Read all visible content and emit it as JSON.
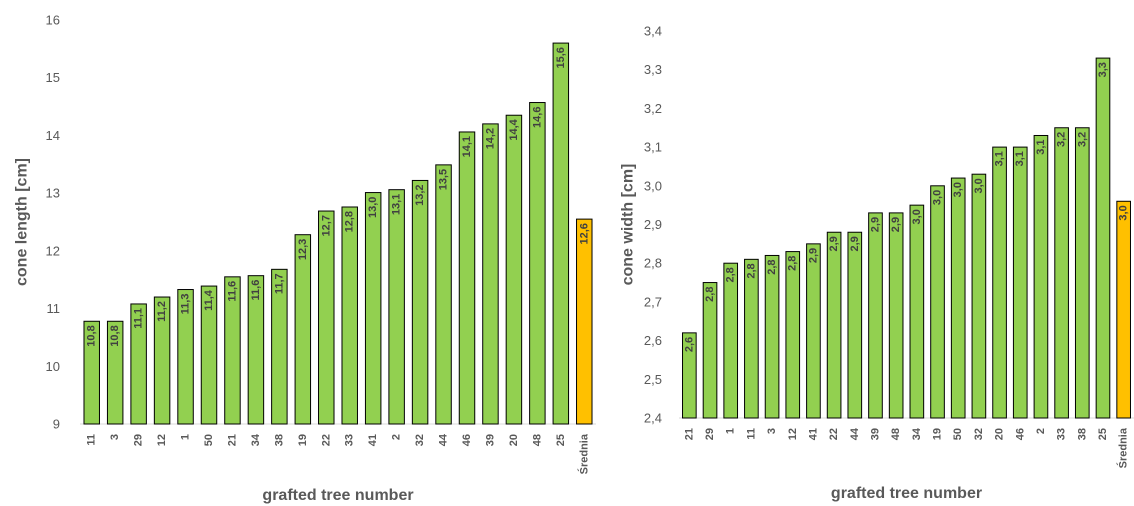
{
  "chart_data": [
    {
      "type": "bar",
      "xlabel": "grafted tree number",
      "ylabel": "cone length [cm]",
      "ylim": [
        9,
        16
      ],
      "yticks": [
        "9",
        "10",
        "11",
        "12",
        "13",
        "14",
        "15",
        "16"
      ],
      "categories": [
        "11",
        "3",
        "29",
        "12",
        "1",
        "50",
        "21",
        "34",
        "38",
        "19",
        "22",
        "33",
        "41",
        "2",
        "32",
        "44",
        "46",
        "39",
        "20",
        "48",
        "25",
        "Średnia"
      ],
      "values": [
        10.78,
        10.78,
        11.08,
        11.2,
        11.33,
        11.39,
        11.55,
        11.57,
        11.68,
        12.28,
        12.69,
        12.76,
        13.01,
        13.06,
        13.22,
        13.49,
        14.06,
        14.2,
        14.35,
        14.57,
        15.6,
        12.55
      ],
      "data_labels": [
        "10,8",
        "10,8",
        "11,1",
        "11,2",
        "11,3",
        "11,4",
        "11,6",
        "11,6",
        "11,7",
        "12,3",
        "12,7",
        "12,8",
        "13,0",
        "13,1",
        "13,2",
        "13,5",
        "14,1",
        "14,2",
        "14,4",
        "14,6",
        "15,6",
        "12,6"
      ],
      "bar_color": "#92d050",
      "highlight_color": "#ffc000",
      "highlight_index": 21,
      "grid": false,
      "legend": "none"
    },
    {
      "type": "bar",
      "xlabel": "grafted tree number",
      "ylabel": "cone width [cm]",
      "ylim": [
        2.4,
        3.4
      ],
      "yticks": [
        "2,4",
        "2,5",
        "2,6",
        "2,7",
        "2,8",
        "2,9",
        "3,0",
        "3,1",
        "3,2",
        "3,3",
        "3,4"
      ],
      "categories": [
        "21",
        "29",
        "1",
        "11",
        "3",
        "12",
        "41",
        "22",
        "44",
        "39",
        "48",
        "34",
        "19",
        "50",
        "32",
        "20",
        "46",
        "2",
        "33",
        "38",
        "25",
        "Średnia"
      ],
      "values": [
        2.62,
        2.75,
        2.8,
        2.81,
        2.82,
        2.83,
        2.85,
        2.88,
        2.88,
        2.93,
        2.93,
        2.95,
        3.0,
        3.02,
        3.03,
        3.1,
        3.1,
        3.13,
        3.15,
        3.15,
        3.33,
        2.96
      ],
      "data_labels": [
        "2,6",
        "2,8",
        "2,8",
        "2,8",
        "2,8",
        "2,8",
        "2,9",
        "2,9",
        "2,9",
        "2,9",
        "2,9",
        "3,0",
        "3,0",
        "3,0",
        "3,0",
        "3,1",
        "3,1",
        "3,1",
        "3,2",
        "3,2",
        "3,3",
        "3,0"
      ],
      "bar_color": "#92d050",
      "highlight_color": "#ffc000",
      "highlight_index": 21,
      "grid": false,
      "legend": "none"
    }
  ]
}
